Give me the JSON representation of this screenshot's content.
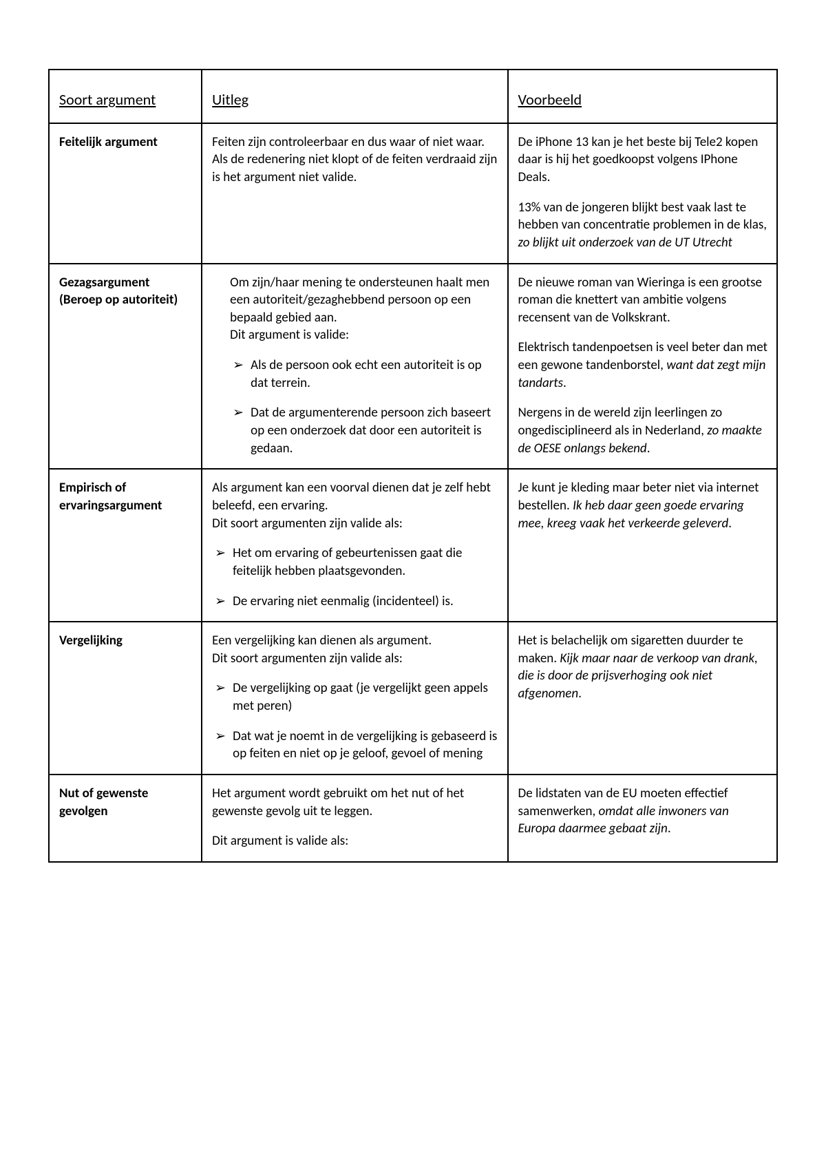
{
  "table": {
    "headers": [
      "Soort argument",
      "Uitleg",
      "Voorbeeld"
    ],
    "rows": [
      {
        "name": "Feitelijk argument",
        "uitleg_intro": "Feiten zijn controleerbaar en dus waar of niet waar. Als de redenering niet klopt of de feiten verdraaid zijn is het argument niet valide.",
        "voorbeeld1_plain": "De iPhone 13 kan je het beste bij Tele2 kopen daar is hij het goedkoopst volgens IPhone Deals.",
        "voorbeeld2_plain": "13% van de jongeren blijkt best vaak last te hebben van concentratie problemen in de klas, ",
        "voorbeeld2_italic": "zo blijkt uit onderzoek van de UT Utrecht"
      },
      {
        "name_line1": "Gezagsargument",
        "name_line2": "(Beroep op autoriteit)",
        "uitleg_intro": "Om zijn/haar mening te ondersteunen haalt men een autoriteit/gezaghebbend persoon op een bepaald gebied aan.",
        "uitleg_intro2": "Dit argument is valide:",
        "bullets": [
          "Als de persoon ook echt een autoriteit is op dat terrein.",
          "Dat de argumenterende persoon zich baseert op een onderzoek dat door een autoriteit is gedaan."
        ],
        "voorbeeld1_plain": "De nieuwe roman van Wieringa is een grootse roman die knettert van ambitie volgens recensent van de Volkskrant.",
        "voorbeeld2_plain": "Elektrisch tandenpoetsen is veel beter dan met een gewone tandenborstel, ",
        "voorbeeld2_italic": "want dat zegt mijn tandarts",
        "voorbeeld3_plain": "Nergens in de wereld zijn leerlingen zo ongedisciplineerd als in Nederland, ",
        "voorbeeld3_italic": "zo maakte de OESE onlangs bekend"
      },
      {
        "name_line1": "Empirisch of",
        "name_line2": "ervaringsargument",
        "uitleg_intro": "Als argument kan een voorval dienen dat je zelf hebt beleefd, een ervaring.",
        "uitleg_intro2": "Dit soort argumenten zijn valide als:",
        "bullets": [
          "Het om ervaring of gebeurtenissen gaat die feitelijk hebben plaatsgevonden.",
          "De ervaring niet eenmalig (incidenteel) is."
        ],
        "voorbeeld1_plain": "Je kunt je kleding maar beter niet via internet bestellen. ",
        "voorbeeld1_italic": "Ik heb daar geen goede ervaring mee, kreeg vaak het verkeerde geleverd"
      },
      {
        "name": "Vergelijking",
        "uitleg_intro": "Een vergelijking kan dienen als argument.",
        "uitleg_intro2": "Dit soort argumenten zijn valide als:",
        "bullets": [
          "De vergelijking op gaat (je vergelijkt geen appels met peren)",
          "Dat wat je noemt in de vergelijking is gebaseerd is op feiten en niet op je geloof, gevoel of mening"
        ],
        "voorbeeld1_plain": "Het is belachelijk om sigaretten duurder te maken. ",
        "voorbeeld1_italic": "Kijk maar naar de verkoop van drank, die is door de prijsverhoging ook niet afgenomen"
      },
      {
        "name_line1": "Nut of gewenste",
        "name_line2": "gevolgen",
        "uitleg_intro": "Het argument wordt gebruikt om het nut of het gewenste gevolg uit te leggen.",
        "uitleg_intro3": "Dit argument is valide als:",
        "voorbeeld1_plain": "De lidstaten van de EU moeten effectief samenwerken, ",
        "voorbeeld1_italic": "omdat alle inwoners van Europa daarmee gebaat zijn"
      }
    ]
  }
}
